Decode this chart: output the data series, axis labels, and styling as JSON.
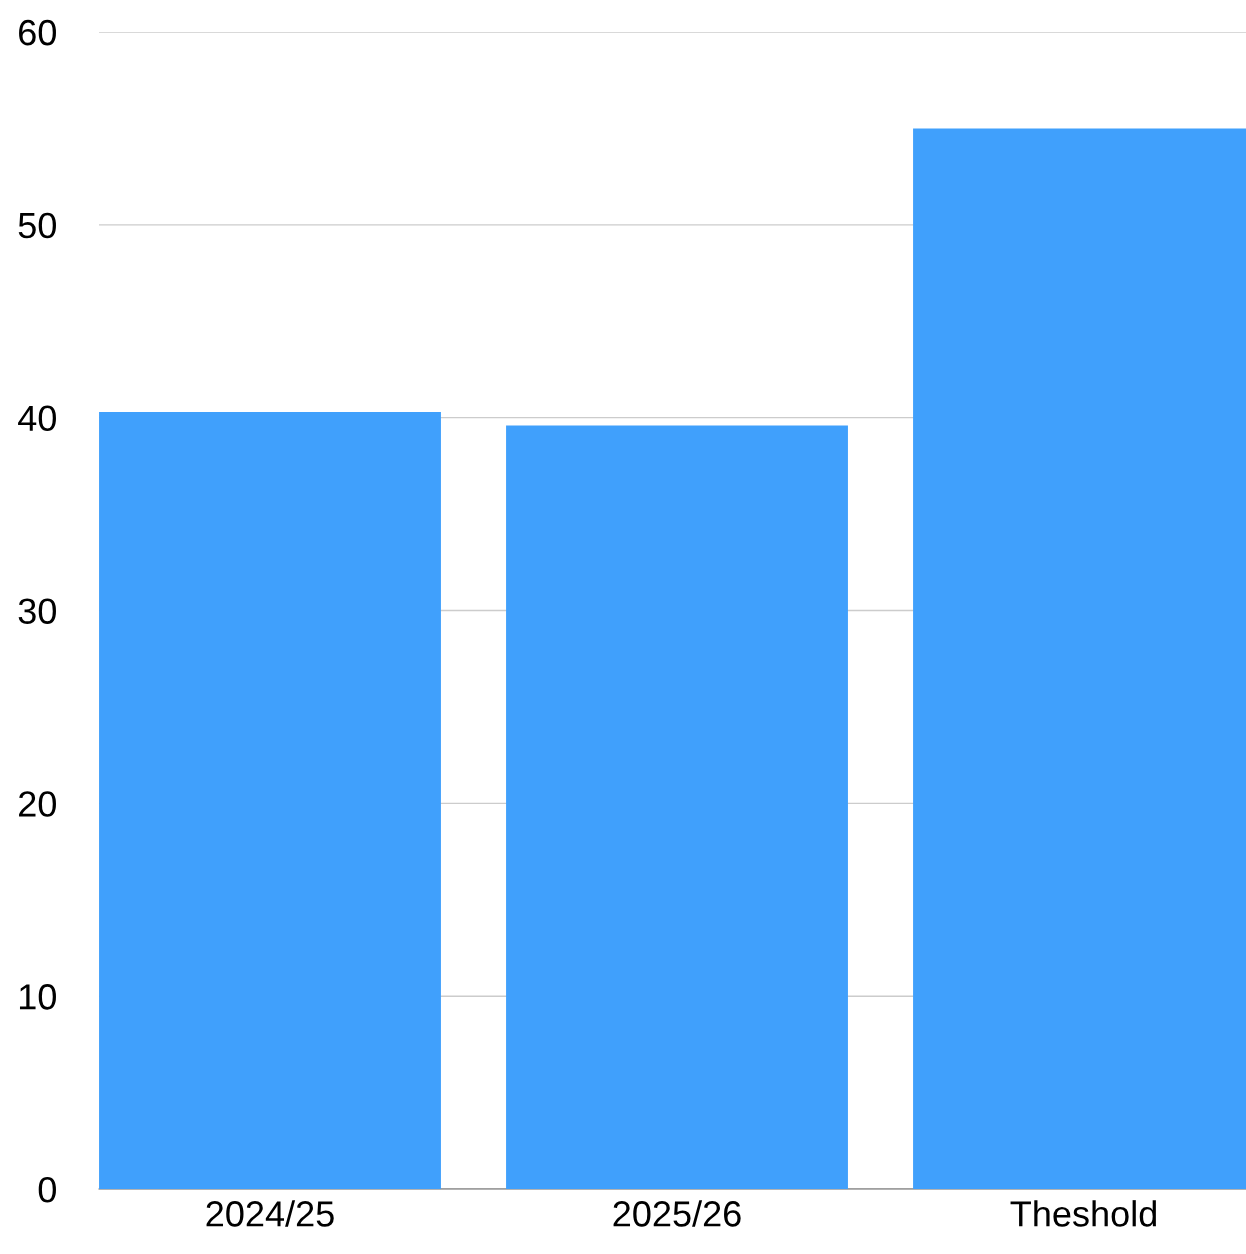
{
  "chart_data": {
    "type": "bar",
    "categories": [
      "2024/25",
      "2025/26",
      "Theshold"
    ],
    "values": [
      40.3,
      39.6,
      55.0
    ],
    "color": "#40a0fc",
    "ylim": [
      0,
      60
    ],
    "yticks": [
      0,
      10,
      20,
      30,
      40,
      50,
      60
    ],
    "grid": "y",
    "legend": false
  }
}
